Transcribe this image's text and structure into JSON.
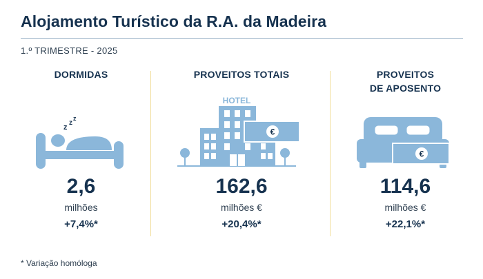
{
  "header": {
    "title": "Alojamento Turístico da R.A. da Madeira",
    "period": "1.º TRIMESTRE - 2025"
  },
  "metrics": [
    {
      "heading": "DORMIDAS",
      "value": "2,6",
      "unit": "milhões",
      "change": "+7,4%*",
      "icon": "sleeping-person-icon"
    },
    {
      "heading": "PROVEITOS TOTAIS",
      "value": "162,6",
      "unit": "milhões €",
      "change": "+20,4%*",
      "icon": "hotel-icon",
      "icon_label": "HOTEL"
    },
    {
      "heading_line1": "PROVEITOS",
      "heading_line2": "DE APOSENTO",
      "value": "114,6",
      "unit": "milhões €",
      "change": "+22,1%*",
      "icon": "bed-icon"
    }
  ],
  "footnote": "* Variação homóloga",
  "colors": {
    "navy": "#16324f",
    "icon_blue": "#8bb7da",
    "divider": "#f1de9c"
  }
}
